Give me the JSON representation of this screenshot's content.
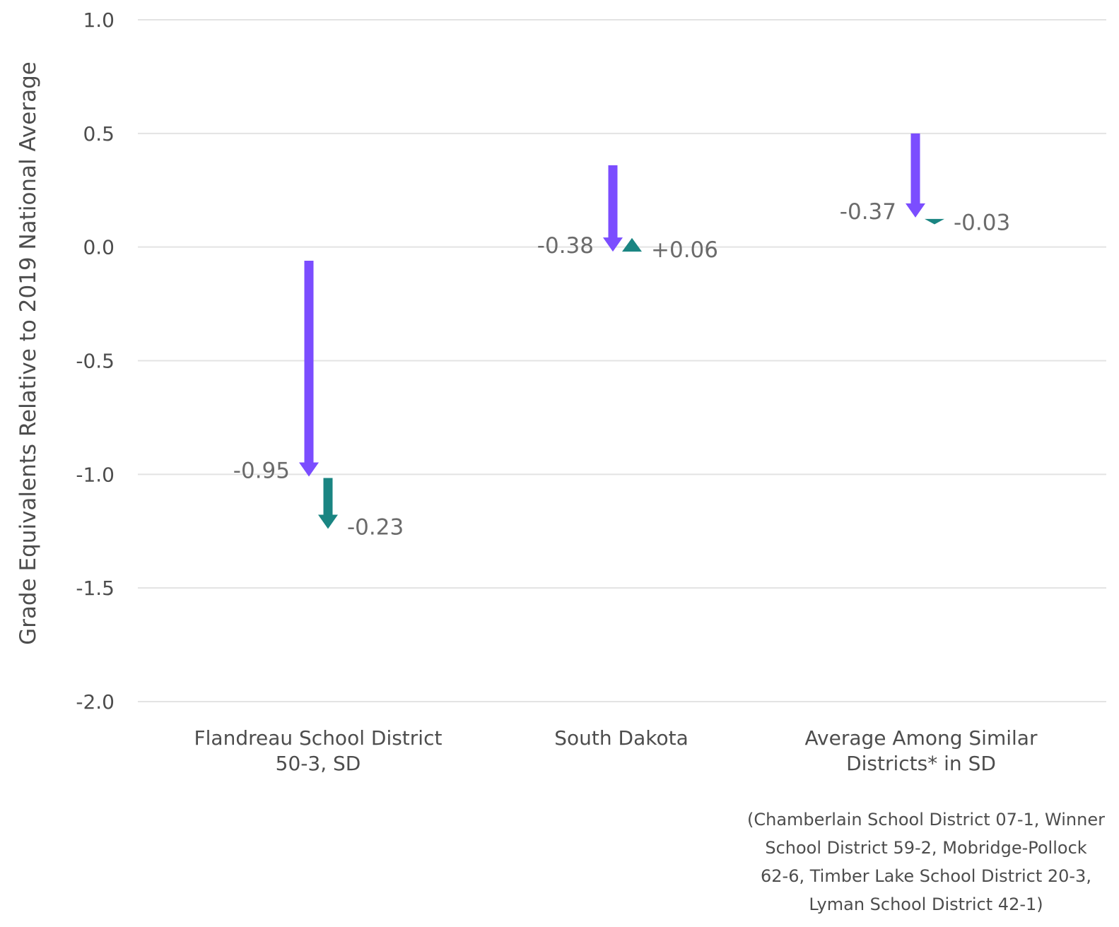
{
  "chart_data": {
    "type": "arrow",
    "ylabel": "Grade Equivalents Relative to 2019 National Average",
    "ylim": [
      -2.0,
      1.0
    ],
    "yticks": [
      "1.0",
      "0.5",
      "0.0",
      "-0.5",
      "-1.0",
      "-1.5",
      "-2.0"
    ],
    "grid": true,
    "categories": [
      {
        "line1": "Flandreau School District",
        "line2": "50-3, SD",
        "start": -0.06,
        "change1": -0.95,
        "change1_label": "-0.95",
        "change2": -0.23,
        "change2_label": "-0.23"
      },
      {
        "line1": "South Dakota",
        "line2": "",
        "start": 0.36,
        "change1": -0.38,
        "change1_label": "-0.38",
        "change2": 0.06,
        "change2_label": "+0.06"
      },
      {
        "line1": "Average Among Similar",
        "line2": "Districts* in SD",
        "start": 0.5,
        "change1": -0.37,
        "change1_label": "-0.37",
        "change2": -0.03,
        "change2_label": "-0.03"
      }
    ],
    "note": [
      "(Chamberlain School District 07-1, Winner",
      "School District 59-2, Mobridge-Pollock",
      "62-6, Timber Lake School District 20-3,",
      "Lyman School District 42-1)"
    ],
    "colors": {
      "first_change": "#7b4dff",
      "second_change": "#1a8582",
      "grid": "#e3e3e3"
    }
  }
}
